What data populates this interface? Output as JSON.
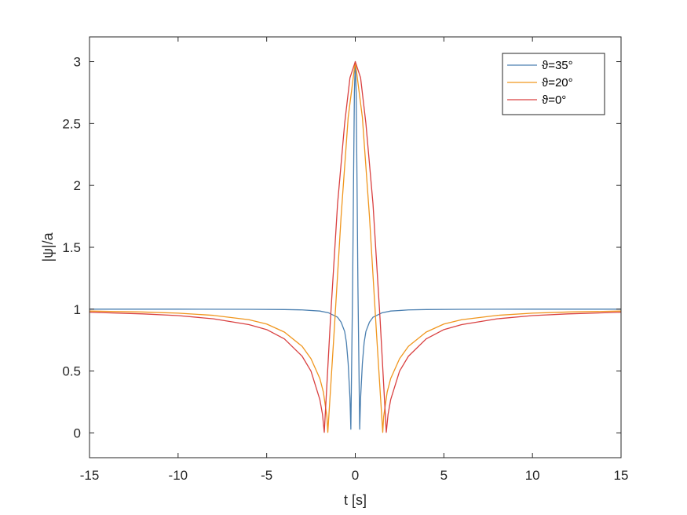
{
  "chart_data": {
    "type": "line",
    "title": "",
    "xlabel": "t [s]",
    "ylabel": "|ψ|/a",
    "xlim": [
      -15,
      15
    ],
    "ylim": [
      -0.2,
      3.2
    ],
    "xticks": [
      -15,
      -10,
      -5,
      0,
      5,
      10,
      15
    ],
    "xtick_labels": [
      "-15",
      "-10",
      "-5",
      "0",
      "5",
      "10",
      "15"
    ],
    "yticks": [
      0,
      0.5,
      1,
      1.5,
      2,
      2.5,
      3
    ],
    "ytick_labels": [
      "0",
      "0.5",
      "1",
      "1.5",
      "2",
      "2.5",
      "3"
    ],
    "grid": false,
    "legend_position": "top-right",
    "series": [
      {
        "name": "ϑ=35°",
        "color": "#4a7fb0",
        "x": [
          -15,
          -10,
          -6,
          -4,
          -3,
          -2,
          -1.5,
          -1,
          -0.8,
          -0.6,
          -0.5,
          -0.4,
          -0.3,
          -0.25,
          -0.15,
          -0.1,
          -0.05,
          0,
          0.05,
          0.1,
          0.15,
          0.25,
          0.3,
          0.4,
          0.5,
          0.6,
          0.8,
          1,
          1.5,
          2,
          3,
          4,
          6,
          10,
          15
        ],
        "y": [
          1.0,
          1.0,
          0.999,
          0.997,
          0.994,
          0.985,
          0.97,
          0.935,
          0.895,
          0.82,
          0.73,
          0.56,
          0.28,
          0.03,
          1.18,
          2.0,
          2.75,
          3.0,
          2.75,
          2.0,
          1.18,
          0.03,
          0.28,
          0.56,
          0.73,
          0.82,
          0.895,
          0.935,
          0.97,
          0.985,
          0.994,
          0.997,
          0.999,
          1.0,
          1.0
        ]
      },
      {
        "name": "ϑ=20°",
        "color": "#f0961e",
        "x": [
          -15,
          -12,
          -10,
          -8,
          -6,
          -5,
          -4,
          -3,
          -2.5,
          -2,
          -1.8,
          -1.6,
          -1.55,
          -1.2,
          -0.8,
          -0.4,
          0,
          0.4,
          0.8,
          1.2,
          1.55,
          1.6,
          1.8,
          2,
          2.5,
          3,
          4,
          5,
          6,
          8,
          10,
          12,
          15
        ],
        "y": [
          0.985,
          0.977,
          0.968,
          0.95,
          0.915,
          0.88,
          0.815,
          0.7,
          0.6,
          0.44,
          0.33,
          0.13,
          0.005,
          0.8,
          1.75,
          2.55,
          3.0,
          2.55,
          1.75,
          0.8,
          0.005,
          0.13,
          0.33,
          0.44,
          0.6,
          0.7,
          0.815,
          0.88,
          0.915,
          0.95,
          0.968,
          0.977,
          0.985
        ]
      },
      {
        "name": "ϑ=0°",
        "color": "#d94040",
        "x": [
          -15,
          -12,
          -10,
          -8,
          -6,
          -5,
          -4,
          -3,
          -2.5,
          -2,
          -1.85,
          -1.75,
          -1.4,
          -1.0,
          -0.6,
          -0.3,
          0,
          0.3,
          0.6,
          1.0,
          1.4,
          1.75,
          1.85,
          2,
          2.5,
          3,
          4,
          5,
          6,
          8,
          10,
          12,
          15
        ],
        "y": [
          0.975,
          0.962,
          0.948,
          0.922,
          0.875,
          0.835,
          0.76,
          0.62,
          0.5,
          0.27,
          0.15,
          0.005,
          0.92,
          1.85,
          2.5,
          2.87,
          3.0,
          2.87,
          2.5,
          1.85,
          0.92,
          0.005,
          0.15,
          0.27,
          0.5,
          0.62,
          0.76,
          0.835,
          0.875,
          0.922,
          0.948,
          0.962,
          0.975
        ]
      }
    ]
  }
}
